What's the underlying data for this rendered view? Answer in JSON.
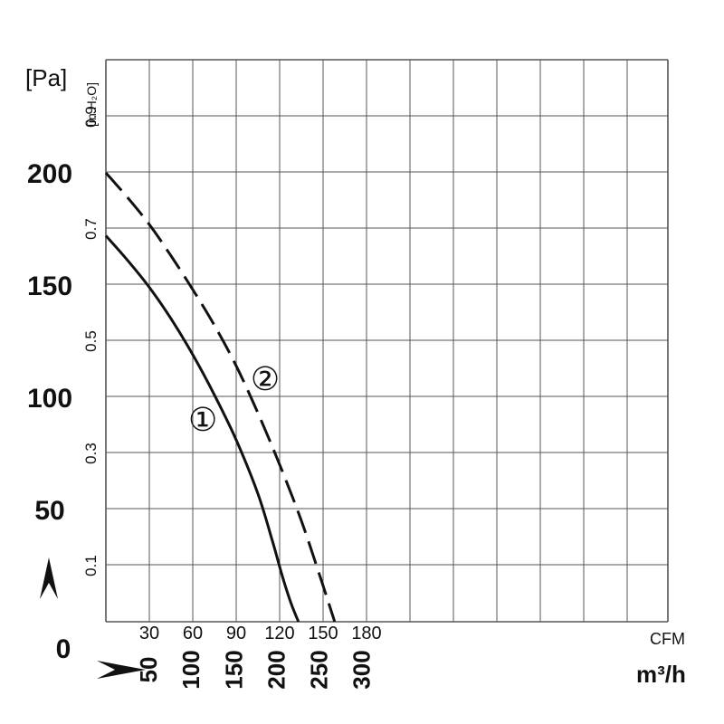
{
  "chart_data": {
    "type": "line",
    "title": "",
    "x_unit_top": "CFM",
    "x_unit_bottom": "m³/h",
    "y_unit_left": "[Pa]",
    "y_unit_right": "[in.H₂O]",
    "x_ticks_cfm": [
      30,
      60,
      90,
      120,
      150,
      180
    ],
    "x_ticks_m3h": [
      50,
      100,
      150,
      200,
      250,
      300
    ],
    "y_ticks_pa": [
      0,
      50,
      100,
      150,
      200
    ],
    "y_ticks_inh2o": [
      0.1,
      0.3,
      0.5,
      0.7,
      0.9
    ],
    "xlim_cfm": [
      0,
      193
    ],
    "ylim_pa": [
      0,
      250
    ],
    "grid": true,
    "series": [
      {
        "name": "①",
        "style": "solid",
        "x_cfm": [
          0,
          15,
          30,
          45,
          60,
          75,
          90,
          105,
          115,
          122,
          128,
          133
        ],
        "y_pa": [
          172,
          161,
          149,
          135,
          119,
          101,
          81,
          57,
          36,
          20,
          8,
          0
        ]
      },
      {
        "name": "②",
        "style": "dashed",
        "x_cfm": [
          0,
          15,
          30,
          45,
          60,
          75,
          90,
          105,
          120,
          135,
          148,
          158
        ],
        "y_pa": [
          200,
          189,
          177,
          163,
          148,
          132,
          114,
          93,
          70,
          45,
          20,
          0
        ]
      }
    ],
    "annotations": [
      {
        "text": "①",
        "series": 0,
        "x_cfm": 67,
        "y_pa": 90
      },
      {
        "text": "②",
        "series": 1,
        "x_cfm": 110,
        "y_pa": 108
      }
    ],
    "arrows": {
      "up": "up-arrow-icon",
      "right": "right-arrow-icon"
    },
    "colors": {
      "line": "#111111",
      "grid": "#555555",
      "background": "#ffffff"
    }
  }
}
